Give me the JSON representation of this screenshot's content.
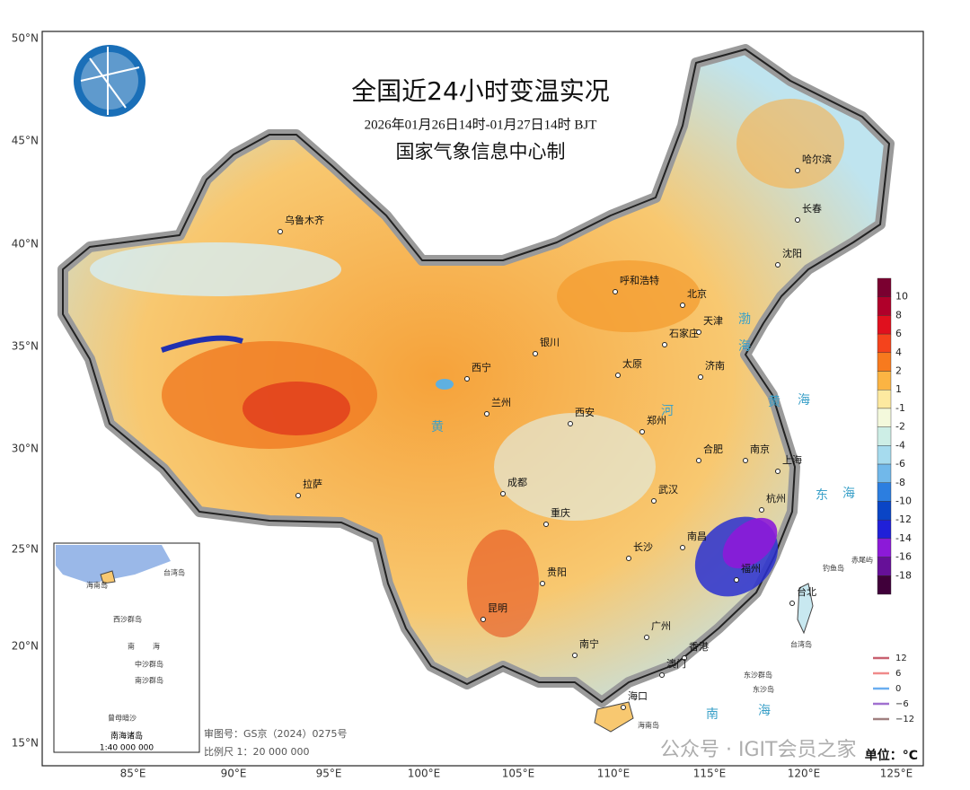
{
  "header": {
    "title": "全国近24小时变温实况",
    "subtitle": "2026年01月26日14时-01月27日14时 BJT",
    "producer": "国家气象信息中心制"
  },
  "axes": {
    "lat_labels": [
      "50°N",
      "45°N",
      "40°N",
      "35°N",
      "30°N",
      "25°N",
      "20°N",
      "15°N"
    ],
    "lon_labels": [
      "85°E",
      "90°E",
      "95°E",
      "100°E",
      "105°E",
      "110°E",
      "115°E",
      "120°E",
      "125°E"
    ]
  },
  "cities": [
    "乌鲁木齐",
    "哈尔滨",
    "长春",
    "沈阳",
    "呼和浩特",
    "北京",
    "天津",
    "石家庄",
    "银川",
    "太原",
    "济南",
    "西宁",
    "兰州",
    "西安",
    "郑州",
    "合肥",
    "南京",
    "上海",
    "拉萨",
    "成都",
    "武汉",
    "杭州",
    "重庆",
    "南昌",
    "长沙",
    "福州",
    "贵阳",
    "台北",
    "昆明",
    "南宁",
    "广州",
    "香港",
    "澳门",
    "海口"
  ],
  "seas": [
    "渤",
    "海",
    "黄",
    "海",
    "东",
    "海",
    "南",
    "海",
    "黄",
    "河",
    "台湾岛",
    "东沙群岛",
    "东沙岛",
    "海南岛",
    "钓鱼岛",
    "赤尾屿"
  ],
  "colorbar": {
    "labels": [
      "10",
      "8",
      "6",
      "4",
      "2",
      "1",
      "-1",
      "-2",
      "-4",
      "-6",
      "-8",
      "-10",
      "-12",
      "-14",
      "-16",
      "-18"
    ],
    "colors": [
      "#7a0030",
      "#b0002a",
      "#e0101e",
      "#f4431c",
      "#f77a1e",
      "#fbb443",
      "#fde9a0",
      "#f4f9dc",
      "#cdeee6",
      "#a6dbee",
      "#71b8ea",
      "#2c7ee0",
      "#0a45c6",
      "#2020d8",
      "#8c1ad8",
      "#661098",
      "#40003a"
    ]
  },
  "contour_legend": {
    "labels": [
      "12",
      "6",
      "0",
      "−6",
      "−12"
    ],
    "colors": [
      "#c86070",
      "#f08a8a",
      "#6aaef0",
      "#a070d0",
      "#a08080"
    ]
  },
  "inset": {
    "title": "南海诸岛",
    "scale": "1:40 000 000",
    "labels": [
      "台湾岛",
      "海南岛",
      "西沙群岛",
      "南",
      "海",
      "中沙群岛",
      "南沙群岛",
      "曾母暗沙"
    ]
  },
  "footer": {
    "review": "审图号：GS京（2024）0275号",
    "scale": "比例尺 1：20 000 000",
    "unit": "单位：°C",
    "watermark": "公众号 · IGIT会员之家"
  }
}
